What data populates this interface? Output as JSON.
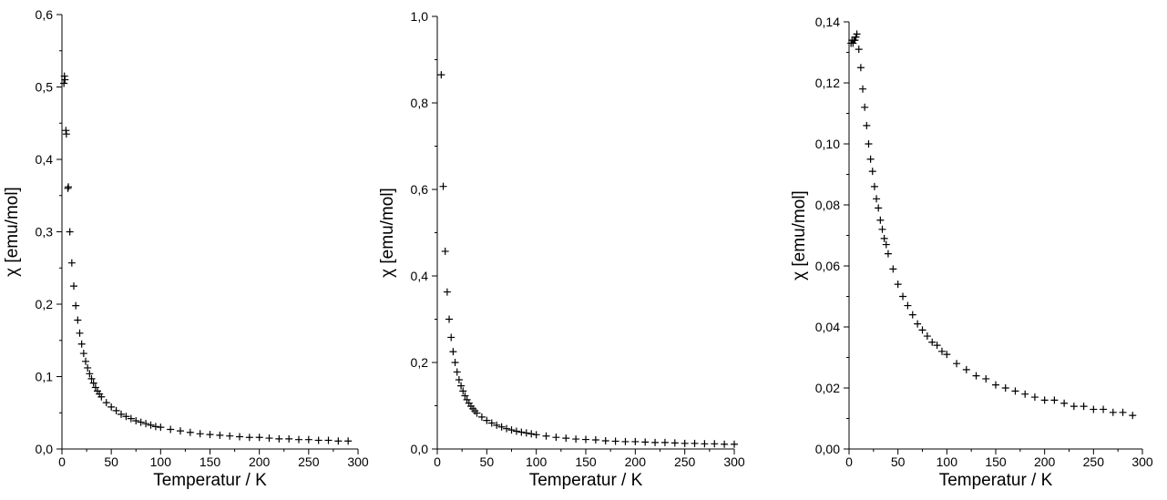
{
  "chart_data": [
    {
      "type": "scatter",
      "marker": "plus",
      "color": "#000000",
      "xlabel": "Temperatur / K",
      "ylabel": "χ [emu/mol]",
      "xlim": [
        0,
        300
      ],
      "ylim": [
        0,
        0.6
      ],
      "xticks": [
        "0",
        "50",
        "100",
        "150",
        "200",
        "250",
        "300"
      ],
      "yticks": [
        "0,0",
        "0,1",
        "0,2",
        "0,3",
        "0,4",
        "0,5",
        "0,6"
      ],
      "grid": false,
      "x": [
        2,
        2.5,
        3,
        4,
        4.5,
        6,
        6.5,
        8,
        10,
        12,
        14,
        16,
        18,
        20,
        22,
        24,
        26,
        28,
        30,
        32,
        34,
        36,
        38,
        40,
        45,
        50,
        55,
        60,
        65,
        70,
        75,
        80,
        85,
        90,
        95,
        100,
        110,
        120,
        130,
        140,
        150,
        160,
        170,
        180,
        190,
        200,
        210,
        220,
        230,
        240,
        250,
        260,
        270,
        280,
        290
      ],
      "y": [
        0.505,
        0.515,
        0.51,
        0.44,
        0.435,
        0.36,
        0.362,
        0.3,
        0.257,
        0.225,
        0.198,
        0.178,
        0.16,
        0.145,
        0.132,
        0.121,
        0.112,
        0.104,
        0.097,
        0.091,
        0.085,
        0.08,
        0.076,
        0.072,
        0.064,
        0.058,
        0.053,
        0.048,
        0.045,
        0.042,
        0.039,
        0.037,
        0.035,
        0.033,
        0.031,
        0.03,
        0.027,
        0.025,
        0.023,
        0.021,
        0.02,
        0.019,
        0.018,
        0.017,
        0.016,
        0.016,
        0.015,
        0.014,
        0.014,
        0.013,
        0.013,
        0.012,
        0.012,
        0.011,
        0.011
      ]
    },
    {
      "type": "scatter",
      "marker": "plus",
      "color": "#000000",
      "xlabel": "Temperatur / K",
      "ylabel": "χ [emu/mol]",
      "xlim": [
        0,
        300
      ],
      "ylim": [
        0,
        1.0
      ],
      "xticks": [
        "0",
        "50",
        "100",
        "150",
        "200",
        "250",
        "300"
      ],
      "yticks": [
        "0,0",
        "0,2",
        "0,4",
        "0,6",
        "0,8",
        "1,0"
      ],
      "grid": false,
      "x": [
        4,
        6,
        8,
        10,
        12,
        14,
        16,
        18,
        20,
        22,
        24,
        26,
        28,
        30,
        32,
        34,
        36,
        38,
        40,
        45,
        50,
        55,
        60,
        65,
        70,
        75,
        80,
        85,
        90,
        95,
        100,
        110,
        120,
        130,
        140,
        150,
        160,
        170,
        180,
        190,
        200,
        210,
        220,
        230,
        240,
        250,
        260,
        270,
        280,
        290,
        300
      ],
      "y": [
        0.865,
        0.607,
        0.457,
        0.363,
        0.3,
        0.258,
        0.225,
        0.2,
        0.178,
        0.16,
        0.146,
        0.134,
        0.123,
        0.114,
        0.106,
        0.099,
        0.093,
        0.088,
        0.083,
        0.074,
        0.066,
        0.06,
        0.055,
        0.051,
        0.047,
        0.044,
        0.041,
        0.039,
        0.037,
        0.035,
        0.033,
        0.03,
        0.027,
        0.025,
        0.023,
        0.022,
        0.021,
        0.019,
        0.018,
        0.017,
        0.017,
        0.016,
        0.015,
        0.015,
        0.014,
        0.013,
        0.013,
        0.012,
        0.012,
        0.011,
        0.011
      ]
    },
    {
      "type": "scatter",
      "marker": "plus",
      "color": "#000000",
      "xlabel": "Temperatur / K",
      "ylabel": "χ [emu/mol]",
      "xlim": [
        0,
        300
      ],
      "ylim": [
        0,
        0.14
      ],
      "xticks": [
        "0",
        "50",
        "100",
        "150",
        "200",
        "250",
        "300"
      ],
      "yticks": [
        "0,00",
        "0,02",
        "0,04",
        "0,06",
        "0,08",
        "0,10",
        "0,12",
        "0,14"
      ],
      "grid": false,
      "x": [
        2,
        3,
        4,
        5,
        6,
        7,
        8,
        10,
        12,
        14,
        16,
        18,
        20,
        22,
        24,
        26,
        28,
        30,
        32,
        34,
        36,
        38,
        40,
        45,
        50,
        55,
        60,
        65,
        70,
        75,
        80,
        85,
        90,
        95,
        100,
        110,
        120,
        130,
        140,
        150,
        160,
        170,
        180,
        190,
        200,
        210,
        220,
        230,
        240,
        250,
        260,
        270,
        280,
        290
      ],
      "y": [
        0.133,
        0.134,
        0.133,
        0.134,
        0.134,
        0.135,
        0.136,
        0.131,
        0.125,
        0.118,
        0.112,
        0.106,
        0.1,
        0.095,
        0.091,
        0.086,
        0.082,
        0.079,
        0.075,
        0.072,
        0.069,
        0.067,
        0.064,
        0.059,
        0.054,
        0.05,
        0.047,
        0.044,
        0.041,
        0.039,
        0.037,
        0.035,
        0.034,
        0.032,
        0.031,
        0.028,
        0.026,
        0.024,
        0.023,
        0.021,
        0.02,
        0.019,
        0.018,
        0.017,
        0.016,
        0.016,
        0.015,
        0.014,
        0.014,
        0.013,
        0.013,
        0.012,
        0.012,
        0.011
      ]
    }
  ]
}
